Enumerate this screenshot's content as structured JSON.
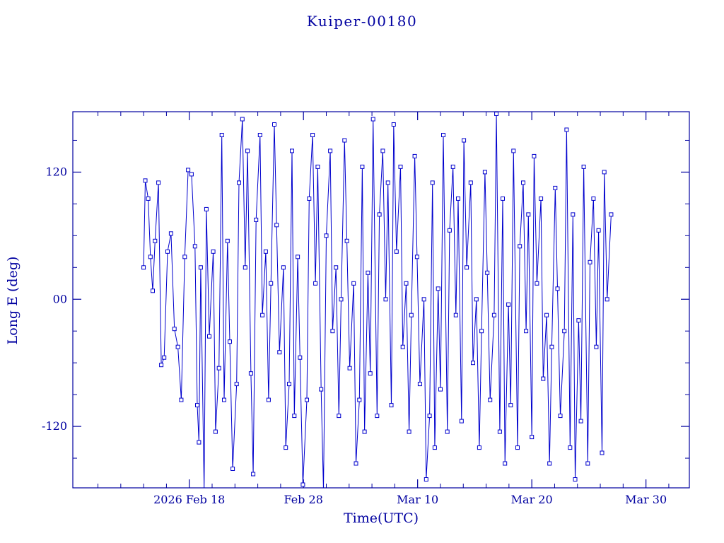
{
  "title": "Kuiper-00180",
  "chart_data": {
    "type": "line",
    "title": "Kuiper-00180",
    "xlabel": "Time(UTC)",
    "ylabel": "Long E (deg)",
    "marker": "open-square",
    "line_color": "#0000cd",
    "axis_color": "#0000a0",
    "xlim": [
      -0.2,
      53.8
    ],
    "ylim": [
      -178,
      177
    ],
    "x_ticks": [
      {
        "day": 10,
        "label": "2026 Feb 18"
      },
      {
        "day": 20,
        "label": "Feb 28"
      },
      {
        "day": 30,
        "label": "Mar 10"
      },
      {
        "day": 40,
        "label": "Mar 20"
      },
      {
        "day": 50,
        "label": "Mar 30"
      }
    ],
    "x_minor_step_days": 2,
    "y_ticks": [
      {
        "value": -120,
        "label": "-120"
      },
      {
        "value": 0,
        "label": "00"
      },
      {
        "value": 120,
        "label": "120"
      }
    ],
    "y_minor_step_deg": 30,
    "points": [
      [
        6.0,
        30
      ],
      [
        6.15,
        112
      ],
      [
        6.4,
        95
      ],
      [
        6.6,
        40
      ],
      [
        6.8,
        8
      ],
      [
        7.0,
        55
      ],
      [
        7.3,
        110
      ],
      [
        7.55,
        -62
      ],
      [
        7.8,
        -55
      ],
      [
        8.1,
        45
      ],
      [
        8.4,
        62
      ],
      [
        8.7,
        -28
      ],
      [
        9.0,
        -45
      ],
      [
        9.3,
        -95
      ],
      [
        9.6,
        40
      ],
      [
        9.9,
        122
      ],
      [
        10.2,
        118
      ],
      [
        10.5,
        50
      ],
      [
        10.7,
        -100
      ],
      [
        10.85,
        -135
      ],
      [
        11.0,
        30
      ],
      [
        11.3,
        -180
      ],
      [
        11.5,
        85
      ],
      [
        11.75,
        -35
      ],
      [
        12.1,
        45
      ],
      [
        12.3,
        -125
      ],
      [
        12.6,
        -65
      ],
      [
        12.85,
        155
      ],
      [
        13.05,
        -95
      ],
      [
        13.35,
        55
      ],
      [
        13.55,
        -40
      ],
      [
        13.8,
        -160
      ],
      [
        14.15,
        -80
      ],
      [
        14.35,
        110
      ],
      [
        14.65,
        170
      ],
      [
        14.9,
        30
      ],
      [
        15.1,
        140
      ],
      [
        15.4,
        -70
      ],
      [
        15.6,
        -165
      ],
      [
        15.85,
        75
      ],
      [
        16.2,
        155
      ],
      [
        16.4,
        -15
      ],
      [
        16.7,
        45
      ],
      [
        16.95,
        -95
      ],
      [
        17.15,
        15
      ],
      [
        17.45,
        165
      ],
      [
        17.65,
        70
      ],
      [
        17.9,
        -50
      ],
      [
        18.25,
        30
      ],
      [
        18.45,
        -140
      ],
      [
        18.75,
        -80
      ],
      [
        19.0,
        140
      ],
      [
        19.2,
        -110
      ],
      [
        19.5,
        40
      ],
      [
        19.7,
        -55
      ],
      [
        19.95,
        -175
      ],
      [
        20.3,
        -95
      ],
      [
        20.5,
        95
      ],
      [
        20.8,
        155
      ],
      [
        21.05,
        15
      ],
      [
        21.25,
        125
      ],
      [
        21.55,
        -85
      ],
      [
        21.75,
        -180
      ],
      [
        22.0,
        60
      ],
      [
        22.35,
        140
      ],
      [
        22.55,
        -30
      ],
      [
        22.85,
        30
      ],
      [
        23.1,
        -110
      ],
      [
        23.3,
        0
      ],
      [
        23.6,
        150
      ],
      [
        23.8,
        55
      ],
      [
        24.05,
        -65
      ],
      [
        24.4,
        15
      ],
      [
        24.6,
        -155
      ],
      [
        24.9,
        -95
      ],
      [
        25.15,
        125
      ],
      [
        25.35,
        -125
      ],
      [
        25.65,
        25
      ],
      [
        25.85,
        -70
      ],
      [
        26.1,
        170
      ],
      [
        26.45,
        -110
      ],
      [
        26.65,
        80
      ],
      [
        26.95,
        140
      ],
      [
        27.2,
        0
      ],
      [
        27.4,
        110
      ],
      [
        27.7,
        -100
      ],
      [
        27.9,
        165
      ],
      [
        28.15,
        45
      ],
      [
        28.5,
        125
      ],
      [
        28.7,
        -45
      ],
      [
        29.0,
        15
      ],
      [
        29.25,
        -125
      ],
      [
        29.45,
        -15
      ],
      [
        29.75,
        135
      ],
      [
        29.95,
        40
      ],
      [
        30.2,
        -80
      ],
      [
        30.55,
        0
      ],
      [
        30.75,
        -170
      ],
      [
        31.05,
        -110
      ],
      [
        31.3,
        110
      ],
      [
        31.5,
        -140
      ],
      [
        31.8,
        10
      ],
      [
        32.0,
        -85
      ],
      [
        32.25,
        155
      ],
      [
        32.6,
        -125
      ],
      [
        32.8,
        65
      ],
      [
        33.1,
        125
      ],
      [
        33.35,
        -15
      ],
      [
        33.55,
        95
      ],
      [
        33.85,
        -115
      ],
      [
        34.05,
        150
      ],
      [
        34.3,
        30
      ],
      [
        34.65,
        110
      ],
      [
        34.85,
        -60
      ],
      [
        35.15,
        0
      ],
      [
        35.4,
        -140
      ],
      [
        35.6,
        -30
      ],
      [
        35.9,
        120
      ],
      [
        36.1,
        25
      ],
      [
        36.35,
        -95
      ],
      [
        36.7,
        -15
      ],
      [
        36.9,
        175
      ],
      [
        37.2,
        -125
      ],
      [
        37.45,
        95
      ],
      [
        37.65,
        -155
      ],
      [
        37.95,
        -5
      ],
      [
        38.15,
        -100
      ],
      [
        38.4,
        140
      ],
      [
        38.75,
        -140
      ],
      [
        38.95,
        50
      ],
      [
        39.25,
        110
      ],
      [
        39.5,
        -30
      ],
      [
        39.7,
        80
      ],
      [
        40.0,
        -130
      ],
      [
        40.2,
        135
      ],
      [
        40.45,
        15
      ],
      [
        40.8,
        95
      ],
      [
        41.0,
        -75
      ],
      [
        41.3,
        -15
      ],
      [
        41.55,
        -155
      ],
      [
        41.75,
        -45
      ],
      [
        42.05,
        105
      ],
      [
        42.25,
        10
      ],
      [
        42.5,
        -110
      ],
      [
        42.85,
        -30
      ],
      [
        43.05,
        160
      ],
      [
        43.35,
        -140
      ],
      [
        43.6,
        80
      ],
      [
        43.8,
        -170
      ],
      [
        44.1,
        -20
      ],
      [
        44.3,
        -115
      ],
      [
        44.55,
        125
      ],
      [
        44.9,
        -155
      ],
      [
        45.1,
        35
      ],
      [
        45.4,
        95
      ],
      [
        45.65,
        -45
      ],
      [
        45.85,
        65
      ],
      [
        46.15,
        -145
      ],
      [
        46.35,
        120
      ],
      [
        46.6,
        0
      ],
      [
        46.95,
        80
      ]
    ]
  }
}
